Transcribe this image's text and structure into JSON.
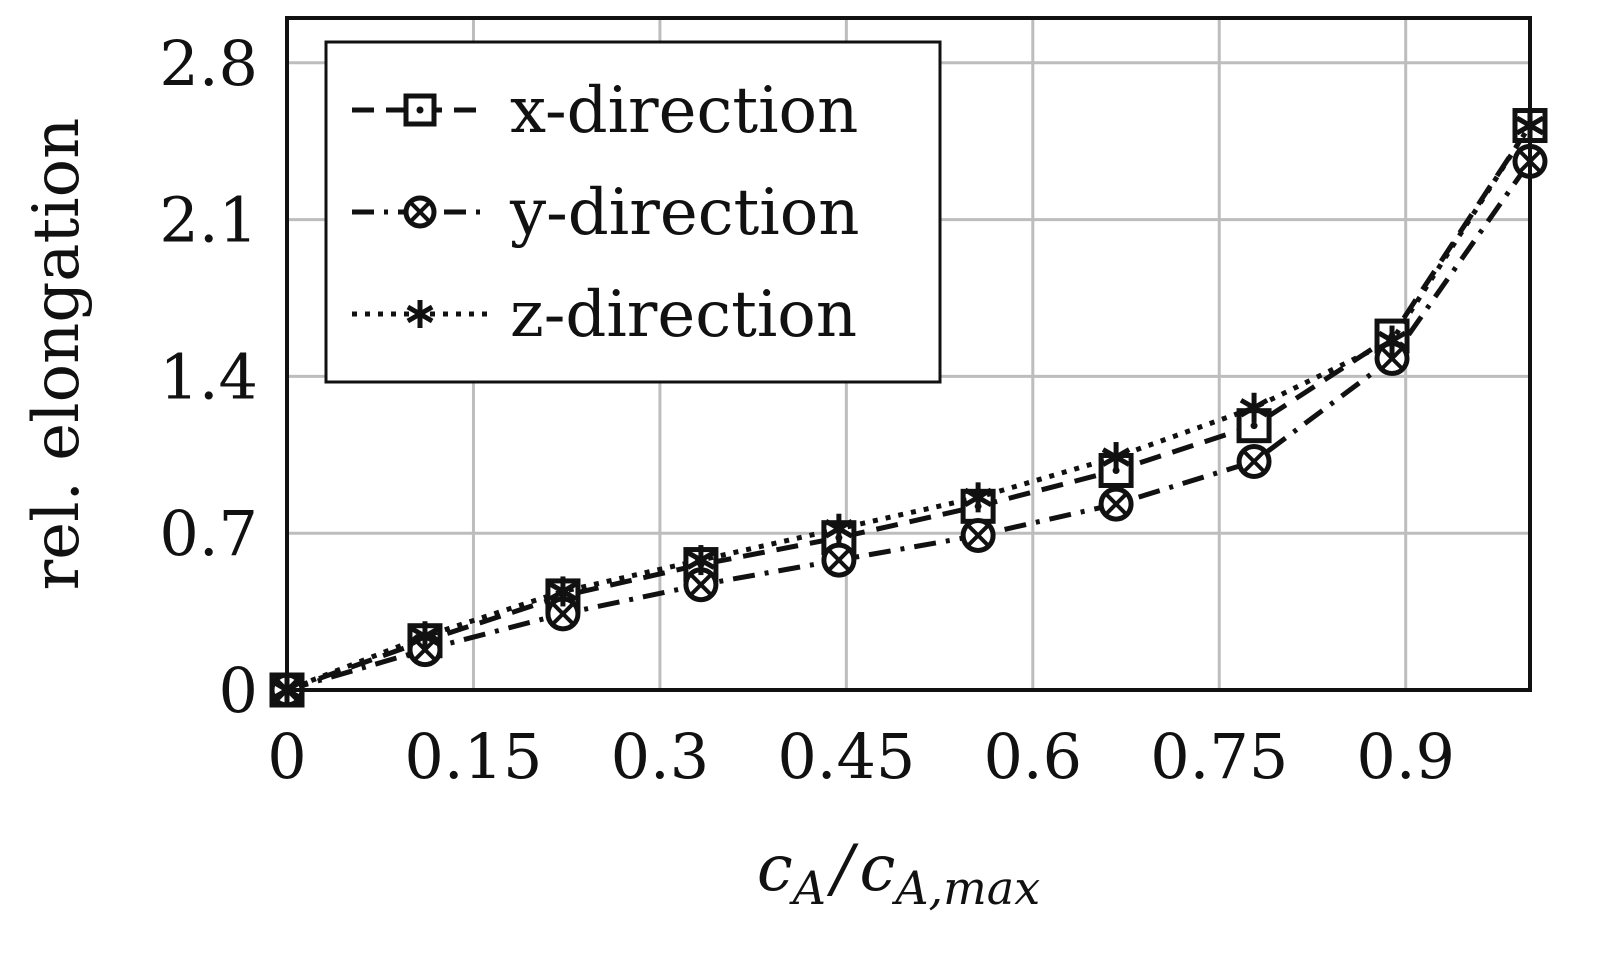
{
  "chart_data": {
    "type": "line",
    "xlabel": {
      "base": "c",
      "sub": "A",
      "slash": "/",
      "base2": "c",
      "sub2": "A,max"
    },
    "ylabel": "rel. elongation",
    "xlim": [
      0,
      1.0
    ],
    "ylim": [
      0,
      3.0
    ],
    "xticks": [
      0,
      0.15,
      0.3,
      0.45,
      0.6,
      0.75,
      0.9
    ],
    "xtick_labels": [
      "0",
      "0.15",
      "0.3",
      "0.45",
      "0.6",
      "0.75",
      "0.9"
    ],
    "yticks": [
      0,
      0.7,
      1.4,
      2.1,
      2.8
    ],
    "ytick_labels": [
      "0",
      "0.7",
      "1.4",
      "2.1",
      "2.8"
    ],
    "grid": true,
    "legend_position": "top-left",
    "x": [
      0,
      0.111,
      0.222,
      0.333,
      0.444,
      0.556,
      0.667,
      0.778,
      0.889,
      1.0
    ],
    "series": [
      {
        "name": "x-direction",
        "marker": "boxed-dot",
        "linestyle": "dashed",
        "values": [
          0,
          0.22,
          0.42,
          0.56,
          0.68,
          0.82,
          0.98,
          1.18,
          1.58,
          2.52
        ]
      },
      {
        "name": "y-direction",
        "marker": "circled-x",
        "linestyle": "dash-dot",
        "values": [
          0,
          0.18,
          0.34,
          0.47,
          0.58,
          0.69,
          0.83,
          1.02,
          1.48,
          2.36
        ]
      },
      {
        "name": "z-direction",
        "marker": "star",
        "linestyle": "dotted",
        "values": [
          0,
          0.24,
          0.44,
          0.58,
          0.72,
          0.86,
          1.04,
          1.26,
          1.56,
          2.52
        ]
      }
    ]
  }
}
